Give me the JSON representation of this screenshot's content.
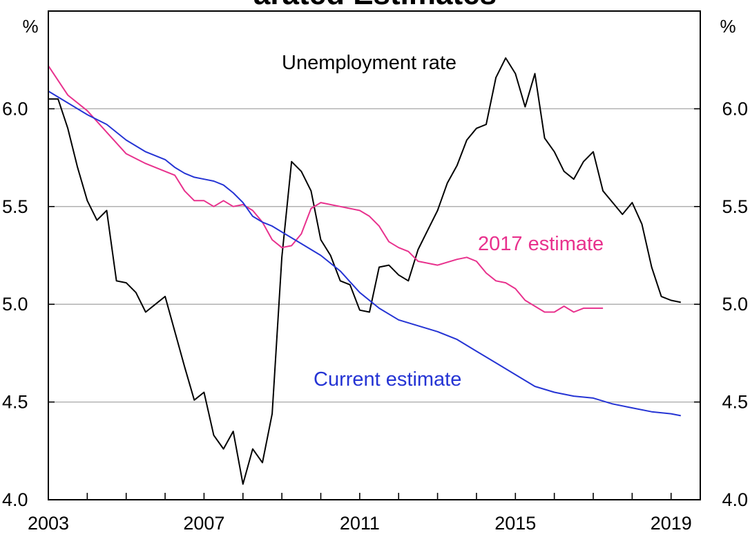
{
  "chart_data": {
    "type": "line",
    "title_fragment": "arated Estimates",
    "y_unit_left": "%",
    "y_unit_right": "%",
    "ylim": [
      4.0,
      6.5
    ],
    "yticks": [
      4.0,
      4.5,
      5.0,
      5.5,
      6.0
    ],
    "ytick_labels": [
      "4.0",
      "4.5",
      "5.0",
      "5.5",
      "6.0"
    ],
    "xlim": [
      2003.0,
      2019.75
    ],
    "xtick_labels": [
      "2003",
      "2007",
      "2011",
      "2015",
      "2019"
    ],
    "xticks": [
      2003,
      2007,
      2011,
      2015,
      2019
    ],
    "grid": true,
    "series": [
      {
        "name": "Unemployment rate",
        "color": "#000000",
        "x": [
          2003.0,
          2003.25,
          2003.5,
          2003.75,
          2004.0,
          2004.25,
          2004.5,
          2004.75,
          2005.0,
          2005.25,
          2005.5,
          2005.75,
          2006.0,
          2006.25,
          2006.5,
          2006.75,
          2007.0,
          2007.25,
          2007.5,
          2007.75,
          2008.0,
          2008.25,
          2008.5,
          2008.75,
          2009.0,
          2009.25,
          2009.5,
          2009.75,
          2010.0,
          2010.25,
          2010.5,
          2010.75,
          2011.0,
          2011.25,
          2011.5,
          2011.75,
          2012.0,
          2012.25,
          2012.5,
          2012.75,
          2013.0,
          2013.25,
          2013.5,
          2013.75,
          2014.0,
          2014.25,
          2014.5,
          2014.75,
          2015.0,
          2015.25,
          2015.5,
          2015.75,
          2016.0,
          2016.25,
          2016.5,
          2016.75,
          2017.0,
          2017.25,
          2017.5,
          2017.75,
          2018.0,
          2018.25,
          2018.5,
          2018.75,
          2019.0,
          2019.25
        ],
        "y": [
          6.05,
          6.05,
          5.9,
          5.7,
          5.53,
          5.43,
          5.48,
          5.12,
          5.11,
          5.06,
          4.96,
          5.0,
          5.04,
          4.86,
          4.68,
          4.51,
          4.55,
          4.33,
          4.26,
          4.35,
          4.08,
          4.26,
          4.19,
          4.44,
          5.24,
          5.73,
          5.68,
          5.58,
          5.33,
          5.25,
          5.12,
          5.1,
          4.97,
          4.96,
          5.19,
          5.2,
          5.15,
          5.12,
          5.28,
          5.38,
          5.48,
          5.62,
          5.71,
          5.84,
          5.9,
          5.92,
          6.16,
          6.26,
          6.18,
          6.01,
          6.18,
          5.85,
          5.78,
          5.68,
          5.64,
          5.73,
          5.78,
          5.58,
          5.52,
          5.46,
          5.52,
          5.41,
          5.19,
          5.04,
          5.02,
          5.01
        ],
        "label": "Unemployment rate"
      },
      {
        "name": "2017 estimate",
        "color": "#e8318d",
        "x": [
          2003.0,
          2003.5,
          2004.0,
          2004.5,
          2005.0,
          2005.5,
          2006.0,
          2006.25,
          2006.5,
          2006.75,
          2007.0,
          2007.25,
          2007.5,
          2007.75,
          2008.0,
          2008.25,
          2008.5,
          2008.75,
          2009.0,
          2009.25,
          2009.5,
          2009.75,
          2010.0,
          2010.5,
          2011.0,
          2011.25,
          2011.5,
          2011.75,
          2012.0,
          2012.25,
          2012.5,
          2013.0,
          2013.5,
          2013.75,
          2014.0,
          2014.25,
          2014.5,
          2014.75,
          2015.0,
          2015.25,
          2015.5,
          2015.75,
          2016.0,
          2016.25,
          2016.5,
          2016.75,
          2017.0,
          2017.25
        ],
        "y": [
          6.22,
          6.07,
          5.99,
          5.88,
          5.77,
          5.72,
          5.68,
          5.66,
          5.58,
          5.53,
          5.53,
          5.5,
          5.53,
          5.5,
          5.51,
          5.48,
          5.42,
          5.33,
          5.29,
          5.3,
          5.36,
          5.49,
          5.52,
          5.5,
          5.48,
          5.45,
          5.4,
          5.32,
          5.29,
          5.27,
          5.22,
          5.2,
          5.23,
          5.24,
          5.22,
          5.16,
          5.12,
          5.11,
          5.08,
          5.02,
          4.99,
          4.96,
          4.96,
          4.99,
          4.96,
          4.98,
          4.98,
          4.98
        ],
        "label": "2017 estimate"
      },
      {
        "name": "Current estimate",
        "color": "#2534d4",
        "x": [
          2003.0,
          2003.5,
          2004.0,
          2004.5,
          2005.0,
          2005.5,
          2006.0,
          2006.25,
          2006.5,
          2006.75,
          2007.0,
          2007.25,
          2007.5,
          2007.75,
          2008.0,
          2008.25,
          2008.5,
          2008.75,
          2009.0,
          2009.5,
          2010.0,
          2010.5,
          2011.0,
          2011.5,
          2012.0,
          2012.5,
          2013.0,
          2013.5,
          2014.0,
          2014.5,
          2015.0,
          2015.5,
          2016.0,
          2016.5,
          2017.0,
          2017.5,
          2018.0,
          2018.5,
          2019.0,
          2019.25
        ],
        "y": [
          6.09,
          6.03,
          5.97,
          5.92,
          5.84,
          5.78,
          5.74,
          5.7,
          5.67,
          5.65,
          5.64,
          5.63,
          5.61,
          5.57,
          5.52,
          5.45,
          5.42,
          5.4,
          5.37,
          5.31,
          5.25,
          5.17,
          5.06,
          4.98,
          4.92,
          4.89,
          4.86,
          4.82,
          4.76,
          4.7,
          4.64,
          4.58,
          4.55,
          4.53,
          4.52,
          4.49,
          4.47,
          4.45,
          4.44,
          4.43
        ],
        "label": "Current estimate"
      }
    ]
  }
}
